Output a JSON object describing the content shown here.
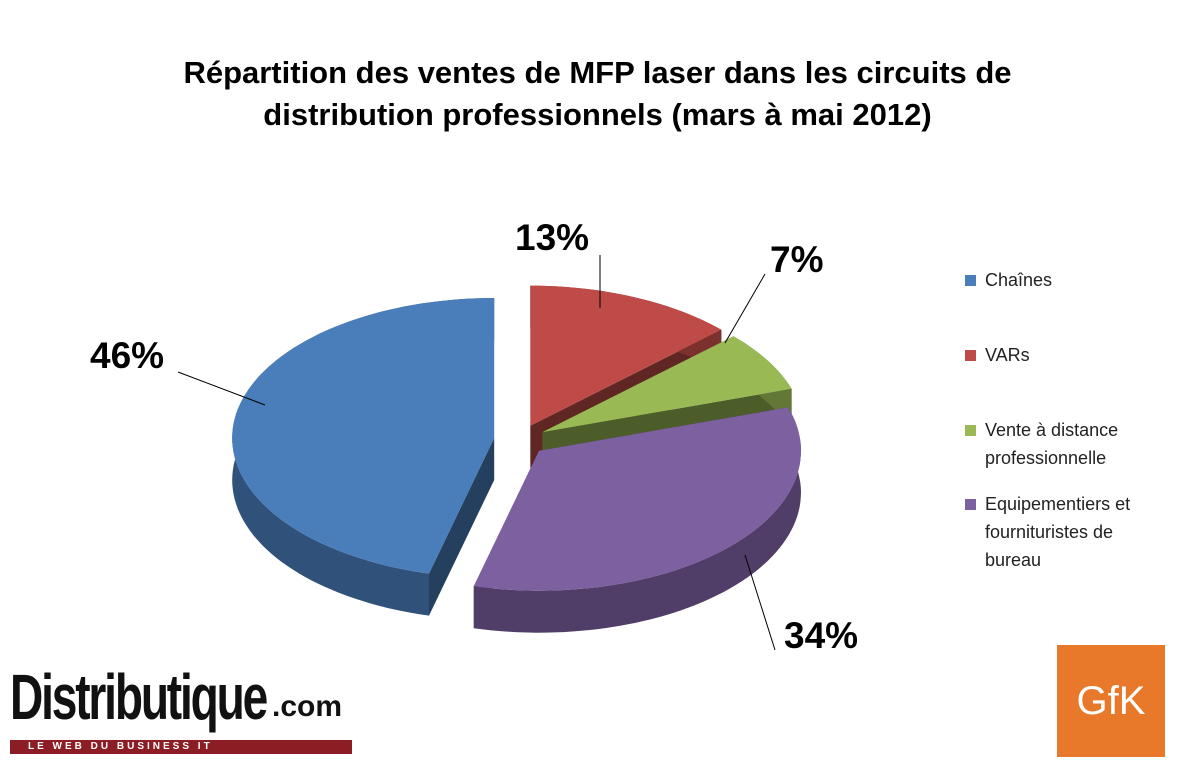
{
  "chart_data": {
    "type": "pie3d",
    "title": "Répartition des ventes de MFP laser dans les circuits de distribution professionnels (mars à mai 2012)",
    "categories": [
      "Chaînes",
      "VARs",
      "Vente à distance professionnelle",
      "Equipementiers et fournituristes de bureau"
    ],
    "values": [
      46,
      13,
      7,
      34
    ],
    "value_labels": [
      "46%",
      "13%",
      "7%",
      "34%"
    ],
    "colors": [
      "#4a7ebb",
      "#be4b48",
      "#98b954",
      "#7d60a0"
    ],
    "legend": "right"
  },
  "branding": {
    "site": "Distributique",
    "site_suffix": ".com",
    "tagline": "LE WEB DU BUSINESS IT",
    "gfk": "GfK"
  }
}
